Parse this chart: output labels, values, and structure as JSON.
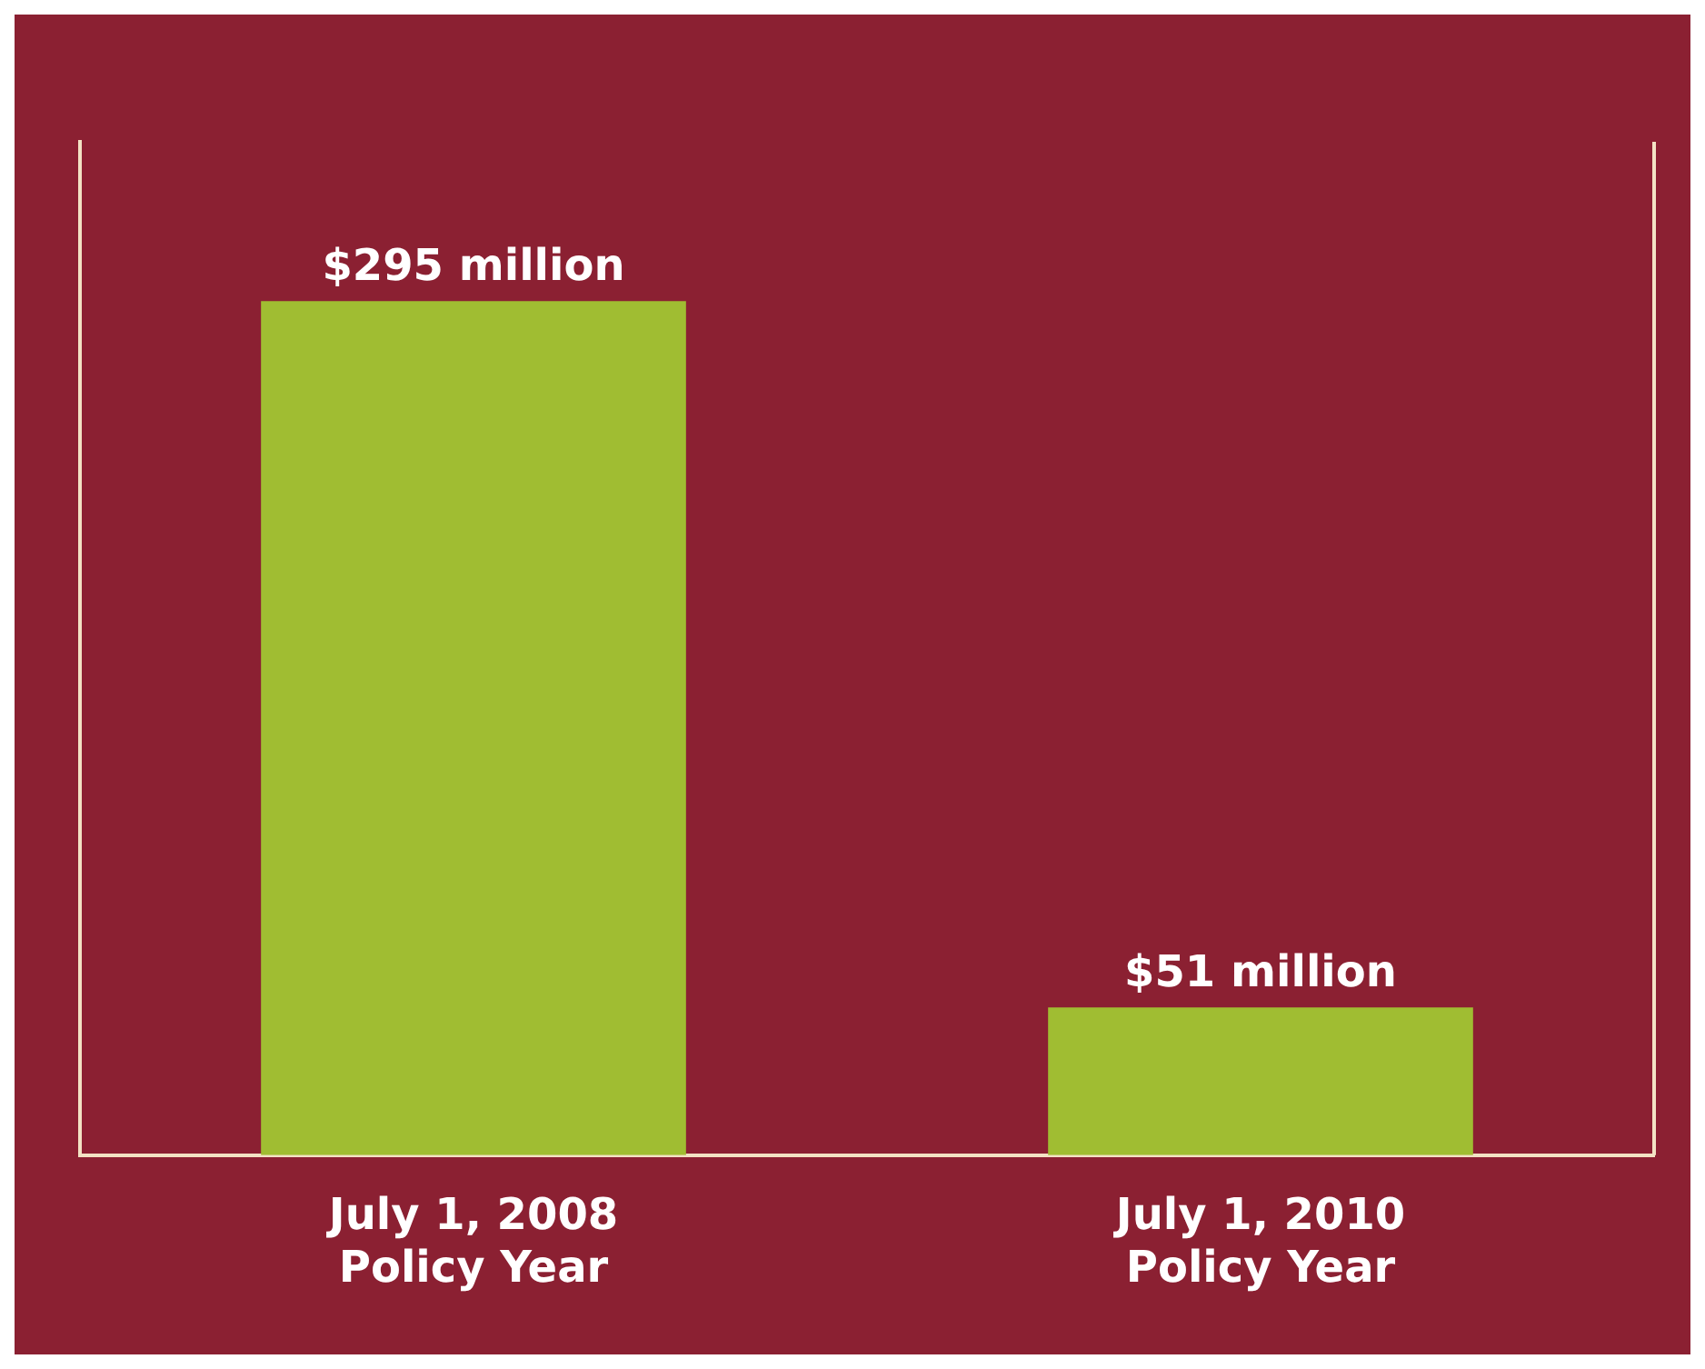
{
  "chart_data": {
    "type": "bar",
    "categories": [
      "July 1, 2008\nPolicy Year",
      "July 1, 2010\nPolicy Year"
    ],
    "values": [
      295,
      51
    ],
    "value_labels": [
      "$295 million",
      "$51 million"
    ],
    "color": "#a0bd32",
    "tick_labels": "x"
  }
}
